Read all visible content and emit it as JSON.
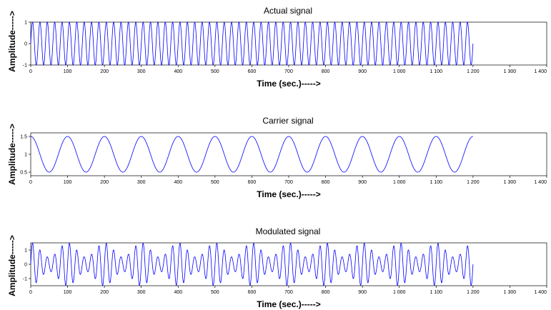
{
  "chart_data": [
    {
      "type": "line",
      "title": "Actual signal",
      "xlabel": "Time (sec.)----->",
      "ylabel": "Amplitude----->",
      "xlim": [
        0,
        1400
      ],
      "ylim": [
        -1,
        1
      ],
      "x_ticks": [
        "0",
        "100",
        "200",
        "300",
        "400",
        "500",
        "600",
        "700",
        "800",
        "900",
        "1 000",
        "1 100",
        "1 200",
        "1 300",
        "1 400"
      ],
      "y_ticks": [
        "-1",
        "0",
        "1"
      ],
      "grid": false,
      "series": [
        {
          "color": "#0000ff",
          "function": "sin",
          "amplitude": 1,
          "offset": 0,
          "period": 20,
          "x_range": [
            0,
            1200
          ]
        }
      ]
    },
    {
      "type": "line",
      "title": "Carrier signal",
      "xlabel": "Time (sec.)----->",
      "ylabel": "Amplitude----->",
      "xlim": [
        0,
        1400
      ],
      "ylim": [
        0.4,
        1.6
      ],
      "x_ticks": [
        "0",
        "100",
        "200",
        "300",
        "400",
        "500",
        "600",
        "700",
        "800",
        "900",
        "1 000",
        "1 100",
        "1 200",
        "1 300",
        "1 400"
      ],
      "y_ticks": [
        "0.5",
        "1",
        "1.5"
      ],
      "grid": false,
      "series": [
        {
          "color": "#0000ff",
          "function": "cos",
          "amplitude": 0.5,
          "offset": 1,
          "period": 100,
          "x_range": [
            0,
            1200
          ]
        }
      ]
    },
    {
      "type": "line",
      "title": "Modulated signal",
      "xlabel": "Time (sec.)----->",
      "ylabel": "Amplitude----->",
      "xlim": [
        0,
        1400
      ],
      "ylim": [
        -1.5,
        1.5
      ],
      "x_ticks": [
        "0",
        "100",
        "200",
        "300",
        "400",
        "500",
        "600",
        "700",
        "800",
        "900",
        "1 000",
        "1 100",
        "1 200",
        "1 300",
        "1 400"
      ],
      "y_ticks": [
        "-1",
        "0",
        "1"
      ],
      "grid": false,
      "series": [
        {
          "color": "#0000ff",
          "function": "modulated",
          "description_of_values": "actual signal multiplied by carrier signal",
          "x_range": [
            0,
            1200
          ]
        }
      ]
    }
  ]
}
